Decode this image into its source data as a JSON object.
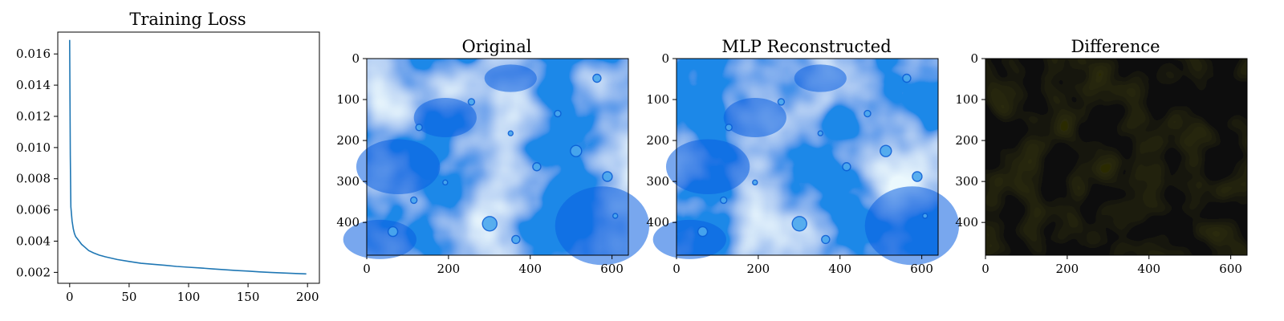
{
  "chart_data": [
    {
      "type": "line",
      "title": "Training Loss",
      "xlabel": "",
      "ylabel": "",
      "xlim": [
        -10,
        210
      ],
      "ylim": [
        0.0013,
        0.0174
      ],
      "xticks": [
        0,
        50,
        100,
        150,
        200
      ],
      "xtick_labels": [
        "0",
        "50",
        "100",
        "150",
        "200"
      ],
      "yticks": [
        0.002,
        0.004,
        0.006,
        0.008,
        0.01,
        0.012,
        0.014,
        0.016
      ],
      "ytick_labels": [
        "0.002",
        "0.004",
        "0.006",
        "0.008",
        "0.010",
        "0.012",
        "0.014",
        "0.016"
      ],
      "grid": false,
      "series": [
        {
          "color": "#1f77b4",
          "x": [
            0,
            0.5,
            1,
            2,
            3,
            4,
            5,
            6,
            8,
            10,
            13,
            16,
            20,
            25,
            30,
            40,
            50,
            60,
            70,
            80,
            90,
            100,
            110,
            120,
            130,
            140,
            150,
            160,
            170,
            180,
            190,
            199
          ],
          "y": [
            0.0169,
            0.0095,
            0.0062,
            0.0053,
            0.0048,
            0.0045,
            0.0043,
            0.0042,
            0.004,
            0.0038,
            0.0036,
            0.0034,
            0.00325,
            0.0031,
            0.003,
            0.00282,
            0.0027,
            0.00258,
            0.00252,
            0.00245,
            0.00238,
            0.00233,
            0.00228,
            0.00222,
            0.00217,
            0.00212,
            0.00208,
            0.00203,
            0.00199,
            0.00196,
            0.00193,
            0.0019
          ]
        }
      ]
    },
    {
      "type": "image",
      "title": "Original",
      "content": "light-blue microscopy image with bubbles",
      "xlim": [
        0,
        640
      ],
      "ylim": [
        480,
        0
      ],
      "xticks": [
        0,
        200,
        400,
        600
      ],
      "xtick_labels": [
        "0",
        "200",
        "400",
        "600"
      ],
      "yticks": [
        0,
        100,
        200,
        300,
        400
      ],
      "ytick_labels": [
        "0",
        "100",
        "200",
        "300",
        "400"
      ]
    },
    {
      "type": "image",
      "title": "MLP Reconstructed",
      "content": "reconstruction of the light-blue microscopy image",
      "xlim": [
        0,
        640
      ],
      "ylim": [
        480,
        0
      ],
      "xticks": [
        0,
        200,
        400,
        600
      ],
      "xtick_labels": [
        "0",
        "200",
        "400",
        "600"
      ],
      "yticks": [
        0,
        100,
        200,
        300,
        400
      ],
      "ytick_labels": [
        "0",
        "100",
        "200",
        "300",
        "400"
      ]
    },
    {
      "type": "image",
      "title": "Difference",
      "content": "near-black difference image",
      "xlim": [
        0,
        640
      ],
      "ylim": [
        480,
        0
      ],
      "xticks": [
        0,
        200,
        400,
        600
      ],
      "xtick_labels": [
        "0",
        "200",
        "400",
        "600"
      ],
      "yticks": [
        0,
        100,
        200,
        300,
        400
      ],
      "ytick_labels": [
        "0",
        "100",
        "200",
        "300",
        "400"
      ]
    }
  ],
  "colors": {
    "line": "#1f77b4",
    "image_base": "#1e88e8",
    "image_light": "#d4f0fb",
    "image_dark": "#0a5fe0",
    "diff_base": "#0b0b0b"
  }
}
